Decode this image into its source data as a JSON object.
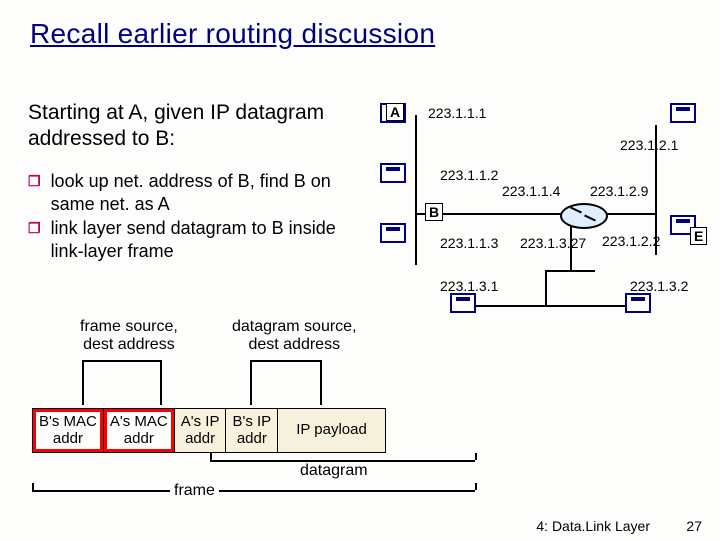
{
  "title": "Recall earlier routing discussion",
  "subtitle": "Starting at A, given IP datagram addressed to B:",
  "bullets": [
    "look up net. address of B, find B on same net. as A",
    "link layer send datagram to B inside link-layer frame"
  ],
  "diagram": {
    "box_a": "A",
    "box_b": "B",
    "box_e": "E",
    "ips": {
      "a": "223.1.1.1",
      "mid_left": "223.1.1.2",
      "b_below": "223.1.1.3",
      "top_right": "223.1.2.1",
      "router_l": "223.1.1.4",
      "router_r": "223.1.2.9",
      "router_bl": "223.1.3.27",
      "e_left": "223.1.2.2",
      "bl": "223.1.3.1",
      "br": "223.1.3.2"
    },
    "link_color": "#000000",
    "host_border": "#000080"
  },
  "annotations": {
    "frame_src_dest": "frame source,\ndest address",
    "dgram_src_dest": "datagram source,\ndest address"
  },
  "frame": {
    "cells": [
      "B's MAC\naddr",
      "A's MAC\naddr",
      "A's IP\naddr",
      "B's IP\naddr",
      "IP payload"
    ],
    "datagram_label": "datagram",
    "frame_label": "frame",
    "highlight_color": "#ff0000",
    "pale_bg": "#f6f1dd"
  },
  "footer": {
    "left": "4: Data.Link Layer",
    "page": "27"
  }
}
